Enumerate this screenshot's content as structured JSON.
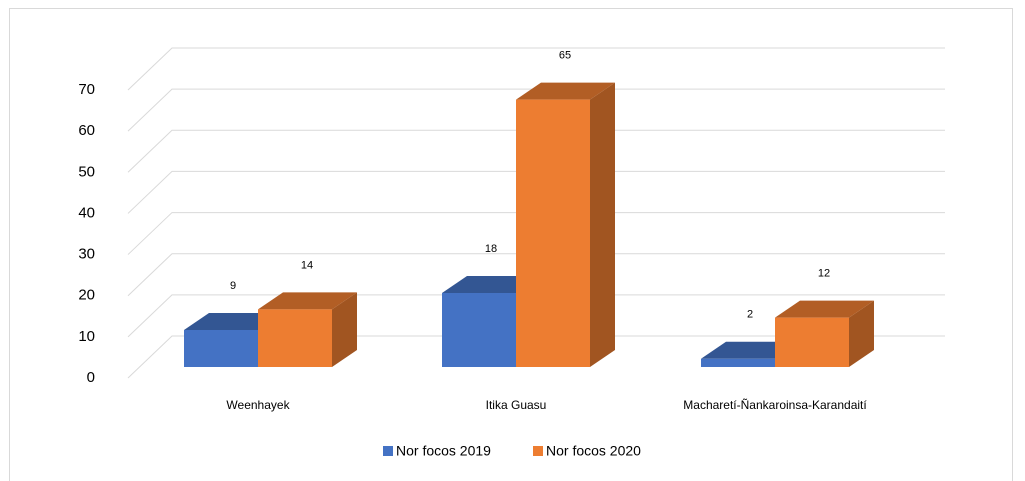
{
  "chart_data": {
    "type": "bar3d",
    "categories": [
      "Weenhayek",
      "Itika Guasu",
      "Macharetí-Ñankaroinsa-Karandaití"
    ],
    "series": [
      {
        "name": "Nor focos 2019",
        "color": "#4472c4",
        "values": [
          9,
          18,
          2
        ]
      },
      {
        "name": "Nor focos 2020",
        "color": "#ed7d31",
        "values": [
          14,
          65,
          12
        ]
      }
    ],
    "ylim": [
      0,
      70
    ],
    "yticks": [
      0,
      10,
      20,
      30,
      40,
      50,
      60,
      70
    ],
    "grid": true,
    "legend": "bottom"
  }
}
